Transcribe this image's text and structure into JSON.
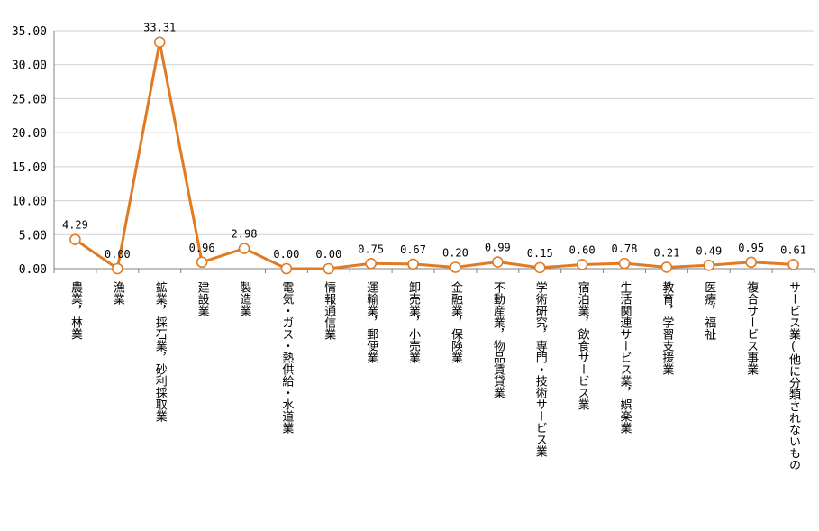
{
  "chart_data": {
    "type": "line",
    "title": "",
    "xlabel": "",
    "ylabel": "",
    "ylim": [
      0,
      35
    ],
    "yticks": [
      "0.00",
      "5.00",
      "10.00",
      "15.00",
      "20.00",
      "25.00",
      "30.00",
      "35.00"
    ],
    "grid": true,
    "legend": "none",
    "line_color": "#E07B24",
    "categories": [
      "農業，林業",
      "漁業",
      "鉱業，採石業，砂利採取業",
      "建設業",
      "製造業",
      "電気・ガス・熱供給・水道業",
      "情報通信業",
      "運輸業，郵便業",
      "卸売業，小売業",
      "金融業，保険業",
      "不動産業，物品賃貸業",
      "学術研究，専門・技術サービス業",
      "宿泊業，飲食サービス業",
      "生活関連サービス業，娯楽業",
      "教育，学習支援業",
      "医療，福祉",
      "複合サービス事業",
      "サービス業(他に分類されないもの"
    ],
    "values": [
      4.29,
      0.0,
      33.31,
      0.96,
      2.98,
      0.0,
      0.0,
      0.75,
      0.67,
      0.2,
      0.99,
      0.15,
      0.6,
      0.78,
      0.21,
      0.49,
      0.95,
      0.61
    ],
    "data_labels": [
      "4.29",
      "0.00",
      "33.31",
      "0.96",
      "2.98",
      "0.00",
      "0.00",
      "0.75",
      "0.67",
      "0.20",
      "0.99",
      "0.15",
      "0.60",
      "0.78",
      "0.21",
      "0.49",
      "0.95",
      "0.61"
    ]
  }
}
